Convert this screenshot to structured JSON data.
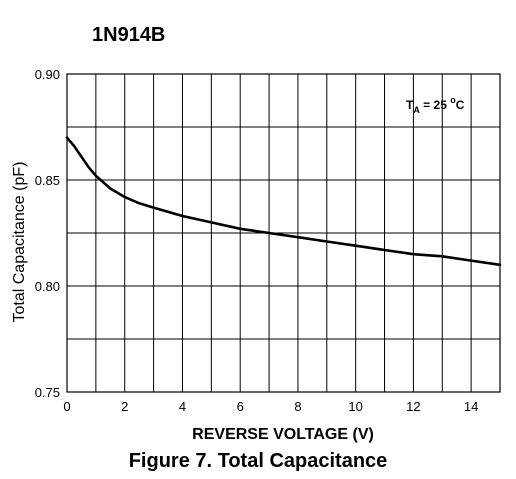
{
  "chart_data": {
    "type": "line",
    "title": "1N914B",
    "caption": "Figure 7. Total Capacitance",
    "xlabel": "REVERSE VOLTAGE (V)",
    "ylabel": "Total Capacitance (pF)",
    "xlim": [
      0,
      15
    ],
    "ylim": [
      0.75,
      0.9
    ],
    "x_ticks": [
      "0",
      "2",
      "4",
      "6",
      "8",
      "10",
      "12",
      "14"
    ],
    "y_ticks": [
      "0.75",
      "0.80",
      "0.85",
      "0.90"
    ],
    "grid": true,
    "annotation": {
      "main": "T",
      "sub": "A",
      "rest": " = 25 ",
      "sup": "o",
      "unit": "C"
    },
    "series": [
      {
        "x": [
          0,
          0.25,
          0.5,
          0.75,
          1,
          1.25,
          1.5,
          2,
          2.5,
          3,
          4,
          5,
          6,
          7,
          8,
          9,
          10,
          11,
          12,
          13,
          14,
          15
        ],
        "y": [
          0.87,
          0.866,
          0.861,
          0.856,
          0.852,
          0.849,
          0.846,
          0.842,
          0.839,
          0.837,
          0.833,
          0.83,
          0.827,
          0.825,
          0.823,
          0.821,
          0.819,
          0.817,
          0.815,
          0.814,
          0.812,
          0.81
        ]
      }
    ]
  }
}
